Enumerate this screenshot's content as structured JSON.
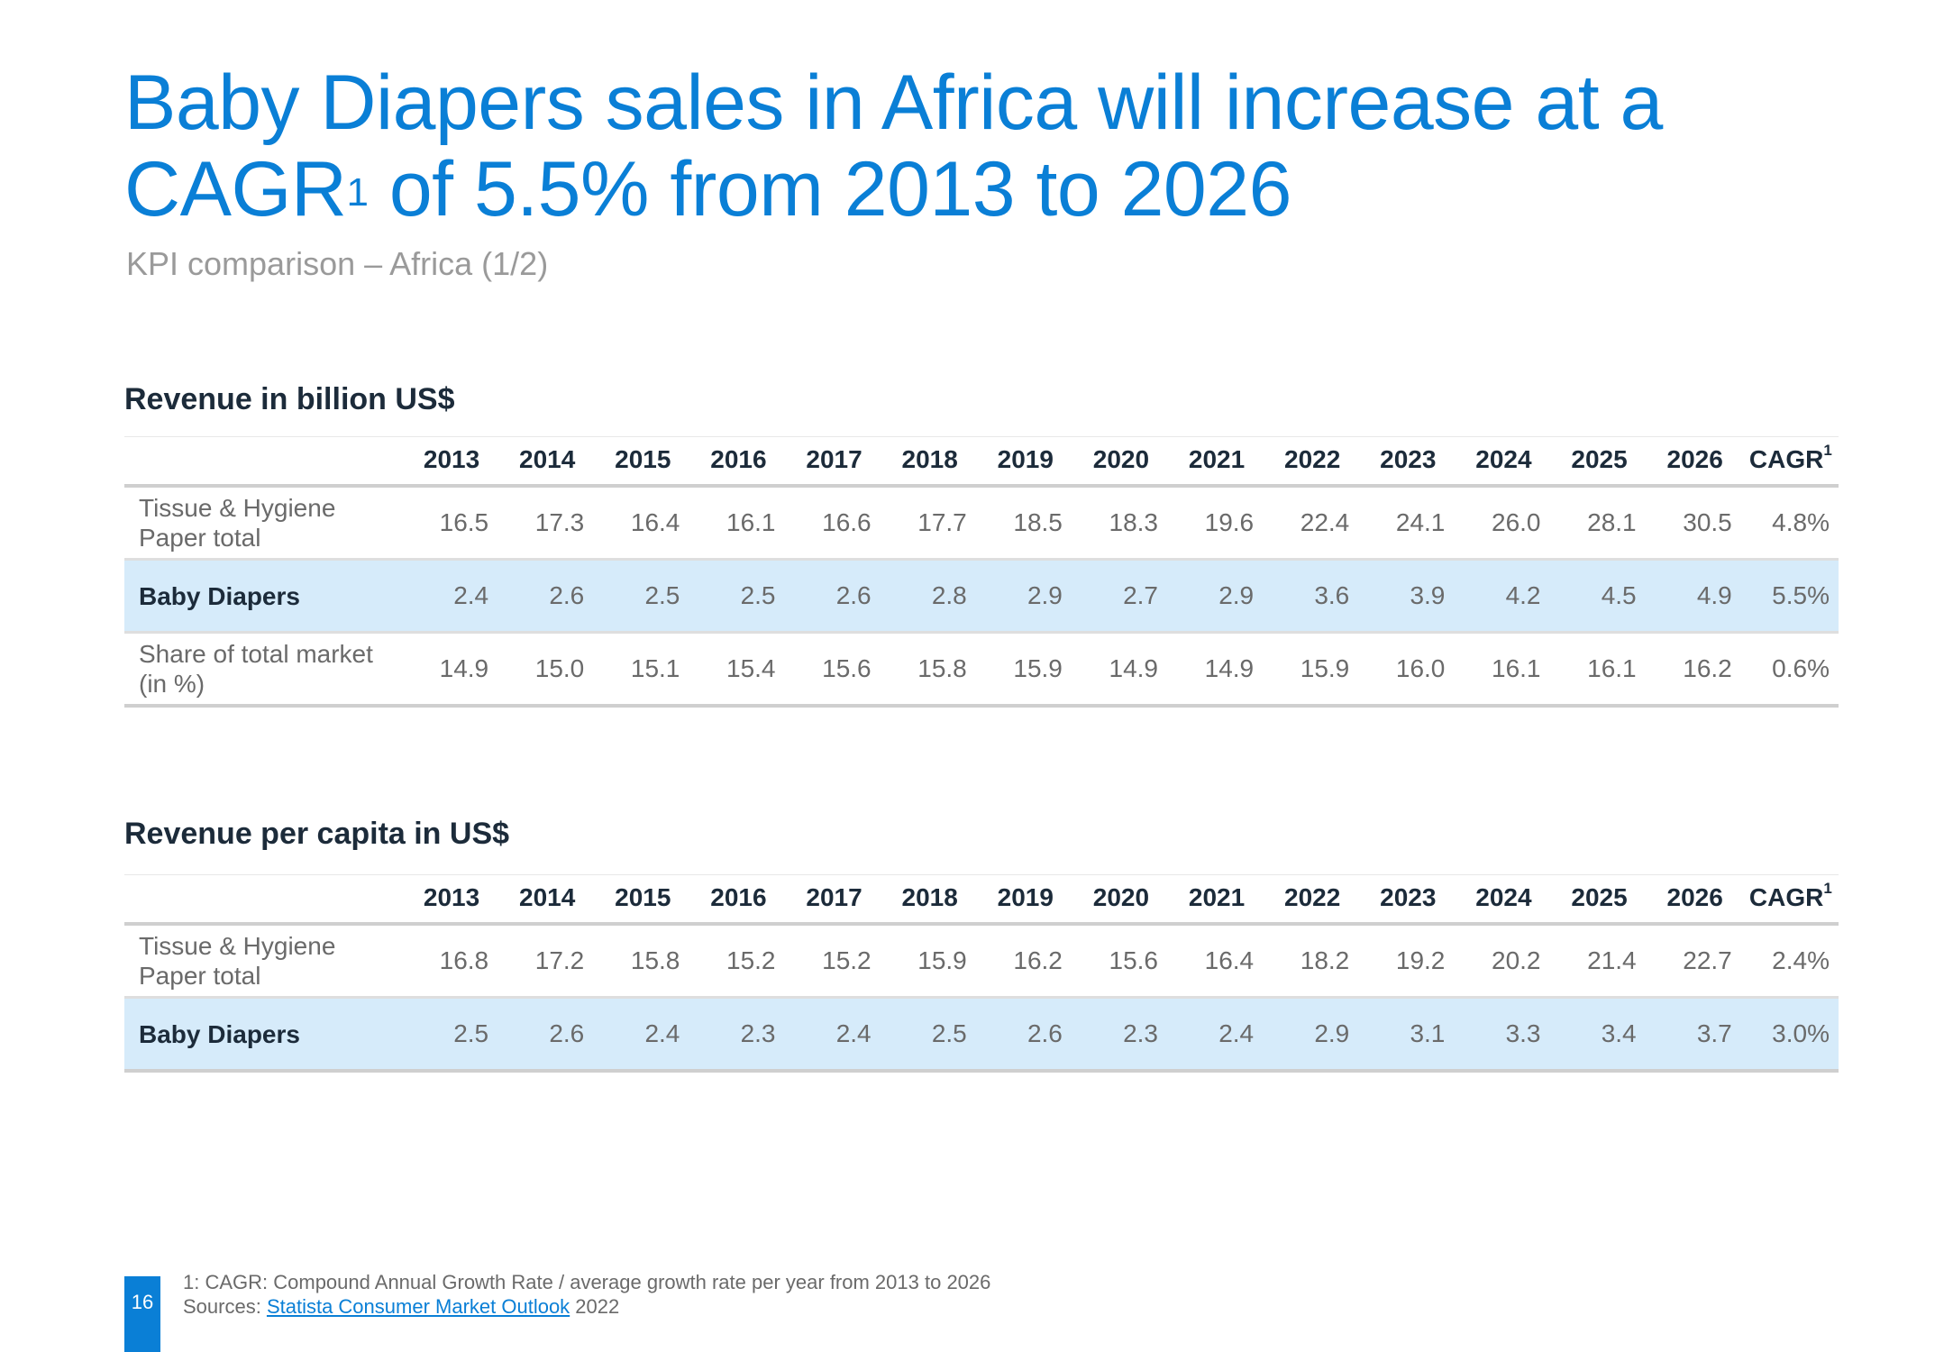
{
  "title": {
    "main_prefix": "Baby Diapers sales in Africa will increase at a CAGR",
    "main_sup": "1",
    "main_suffix": " of 5.5% from 2013 to 2026"
  },
  "subtitle": "KPI comparison – Africa (1/2)",
  "sections": [
    {
      "title": "Revenue in billion US$",
      "headers": [
        "2013",
        "2014",
        "2015",
        "2016",
        "2017",
        "2018",
        "2019",
        "2020",
        "2021",
        "2022",
        "2023",
        "2024",
        "2025",
        "2026"
      ],
      "cagr_label": "CAGR",
      "cagr_sup": "1",
      "rows": [
        {
          "line1": "Tissue & Hygiene",
          "line2": "Paper total",
          "values": [
            "16.5",
            "17.3",
            "16.4",
            "16.1",
            "16.6",
            "17.7",
            "18.5",
            "18.3",
            "19.6",
            "22.4",
            "24.1",
            "26.0",
            "28.1",
            "30.5"
          ],
          "cagr": "4.8%"
        },
        {
          "line1": "Baby Diapers",
          "line2": "",
          "values": [
            "2.4",
            "2.6",
            "2.5",
            "2.5",
            "2.6",
            "2.8",
            "2.9",
            "2.7",
            "2.9",
            "3.6",
            "3.9",
            "4.2",
            "4.5",
            "4.9"
          ],
          "cagr": "5.5%"
        },
        {
          "line1": "Share of total market",
          "line2": "(in %)",
          "values": [
            "14.9",
            "15.0",
            "15.1",
            "15.4",
            "15.6",
            "15.8",
            "15.9",
            "14.9",
            "14.9",
            "15.9",
            "16.0",
            "16.1",
            "16.1",
            "16.2"
          ],
          "cagr": "0.6%"
        }
      ]
    },
    {
      "title": "Revenue per capita in US$",
      "headers": [
        "2013",
        "2014",
        "2015",
        "2016",
        "2017",
        "2018",
        "2019",
        "2020",
        "2021",
        "2022",
        "2023",
        "2024",
        "2025",
        "2026"
      ],
      "cagr_label": "CAGR",
      "cagr_sup": "1",
      "rows": [
        {
          "line1": "Tissue & Hygiene",
          "line2": "Paper total",
          "values": [
            "16.8",
            "17.2",
            "15.8",
            "15.2",
            "15.2",
            "15.9",
            "16.2",
            "15.6",
            "16.4",
            "18.2",
            "19.2",
            "20.2",
            "21.4",
            "22.7"
          ],
          "cagr": "2.4%"
        },
        {
          "line1": "Baby Diapers",
          "line2": "",
          "values": [
            "2.5",
            "2.6",
            "2.4",
            "2.3",
            "2.4",
            "2.5",
            "2.6",
            "2.3",
            "2.4",
            "2.9",
            "3.1",
            "3.3",
            "3.4",
            "3.7"
          ],
          "cagr": "3.0%"
        }
      ]
    }
  ],
  "footer": {
    "page_number": "16",
    "footnote": "1: CAGR: Compound Annual Growth Rate / average growth rate per year from 2013 to 2026",
    "sources_label": "Sources: ",
    "sources_link": "Statista Consumer Market Outlook",
    "sources_year": " 2022"
  }
}
